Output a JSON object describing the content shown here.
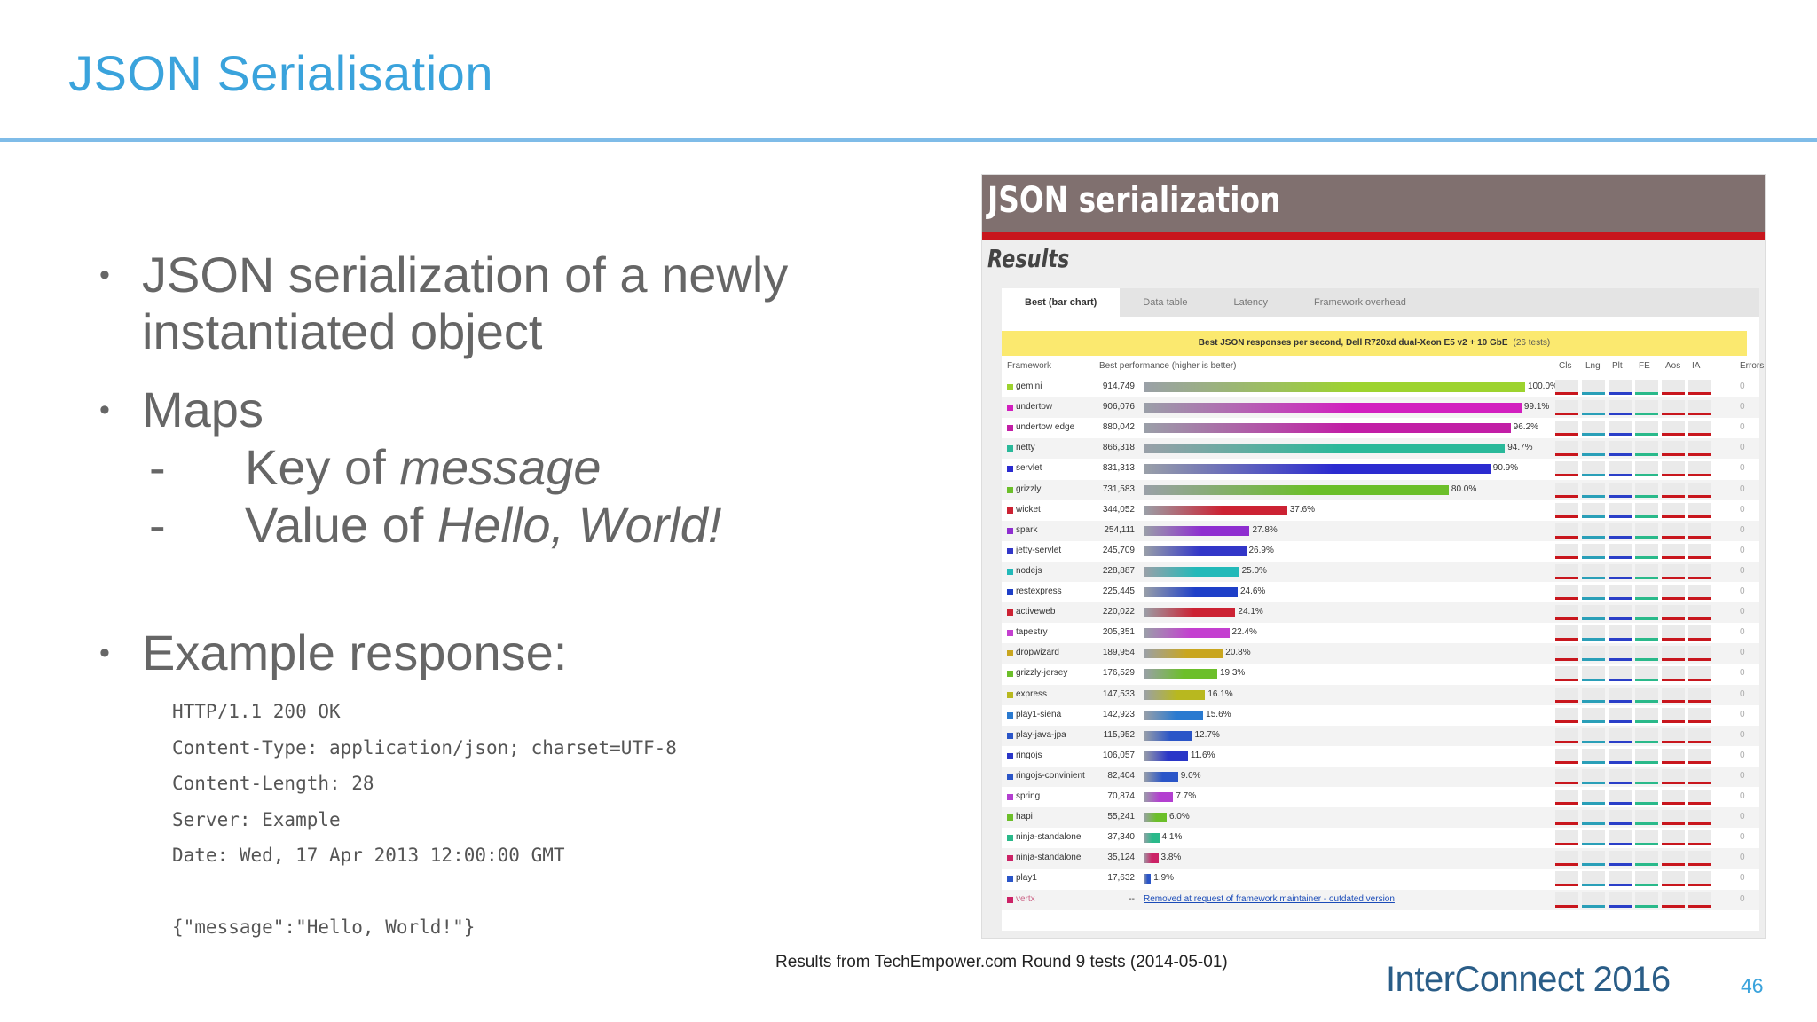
{
  "slide": {
    "title": "JSON Serialisation",
    "bullets": [
      {
        "text": "JSON serialization of a newly instantiated object"
      },
      {
        "text": "Maps",
        "subitems": [
          {
            "prefix": "Key of ",
            "emphasis": "message"
          },
          {
            "prefix": "Value of ",
            "emphasis": "Hello, World!"
          }
        ]
      },
      {
        "text": "Example response:"
      }
    ],
    "bullet_symbol": "•",
    "sub_symbol": "-",
    "code_lines": [
      "HTTP/1.1 200 OK",
      "Content-Type: application/json; charset=UTF-8",
      "Content-Length: 28",
      "Server: Example",
      "Date: Wed, 17 Apr 2013 12:00:00 GMT",
      "",
      "{\"message\":\"Hello, World!\"}"
    ],
    "caption": "Results from TechEmpower.com Round 9 tests (2014-05-01)",
    "brand": "InterConnect 2016",
    "page_number": "46",
    "colors": {
      "title": "#3aa3dc",
      "rule": "#7fbce8",
      "text": "#666666",
      "brand": "#2a5d87"
    }
  },
  "screenshot": {
    "header": "JSON serialization",
    "subheader": "Results",
    "tabs": [
      "Best (bar chart)",
      "Data table",
      "Latency",
      "Framework overhead"
    ],
    "active_tab": 0,
    "banner": "Best JSON responses per second, Dell R720xd dual-Xeon E5 v2 + 10 GbE",
    "banner_count": "(26 tests)",
    "columns": {
      "framework": "Framework",
      "performance": "Best performance (higher is better)",
      "attrs": [
        "Cls",
        "Lng",
        "Plt",
        "FE",
        "Aos",
        "IA",
        "Errors"
      ]
    },
    "removed_note": "Removed at request of framework maintainer - outdated version",
    "removed_value": "--",
    "removed_framework": "vertx"
  },
  "chart_data": {
    "type": "bar",
    "title": "Best JSON responses per second, Dell R720xd dual-Xeon E5 v2 + 10 GbE",
    "xlabel": "Framework",
    "ylabel": "Best performance (higher is better)",
    "categories": [
      "gemini",
      "undertow",
      "undertow edge",
      "netty",
      "servlet",
      "grizzly",
      "wicket",
      "spark",
      "jetty-servlet",
      "nodejs",
      "restexpress",
      "activeweb",
      "tapestry",
      "dropwizard",
      "grizzly-jersey",
      "express",
      "play1-siena",
      "play-java-jpa",
      "ringojs",
      "ringojs-convinient",
      "spring",
      "hapi",
      "ninja-standalone",
      "ninja-standalone",
      "play1"
    ],
    "values": [
      914749,
      906076,
      880042,
      866318,
      831313,
      731583,
      344052,
      254111,
      245709,
      228887,
      225445,
      220022,
      205351,
      189954,
      176529,
      147533,
      142923,
      115952,
      106057,
      82404,
      70874,
      55241,
      37340,
      35124,
      17632
    ],
    "labels": [
      "914,749",
      "906,076",
      "880,042",
      "866,318",
      "831,313",
      "731,583",
      "344,052",
      "254,111",
      "245,709",
      "228,887",
      "225,445",
      "220,022",
      "205,351",
      "189,954",
      "176,529",
      "147,533",
      "142,923",
      "115,952",
      "106,057",
      "82,404",
      "70,874",
      "55,241",
      "37,340",
      "35,124",
      "17,632"
    ],
    "percents": [
      "100.0%",
      "99.1%",
      "96.2%",
      "94.7%",
      "90.9%",
      "80.0%",
      "37.6%",
      "27.8%",
      "26.9%",
      "25.0%",
      "24.6%",
      "24.1%",
      "22.4%",
      "20.8%",
      "19.3%",
      "16.1%",
      "15.6%",
      "12.7%",
      "11.6%",
      "9.0%",
      "7.7%",
      "6.0%",
      "4.1%",
      "3.8%",
      "1.9%"
    ],
    "colors": [
      "#9dd32f",
      "#d21fbf",
      "#c21ea6",
      "#2ab99a",
      "#2b2bd0",
      "#6cbf2a",
      "#cc2233",
      "#8e2ed0",
      "#3236c8",
      "#22b9b9",
      "#1e3fc8",
      "#cc2233",
      "#c43fd0",
      "#c9a61f",
      "#6cbf2a",
      "#b8b81f",
      "#2a7ad0",
      "#2a55c8",
      "#2a36c8",
      "#2a55c8",
      "#b33fd0",
      "#6cbf2a",
      "#2ab98a",
      "#cc2266",
      "#2a55c8"
    ],
    "ylim": [
      0,
      914749
    ]
  }
}
